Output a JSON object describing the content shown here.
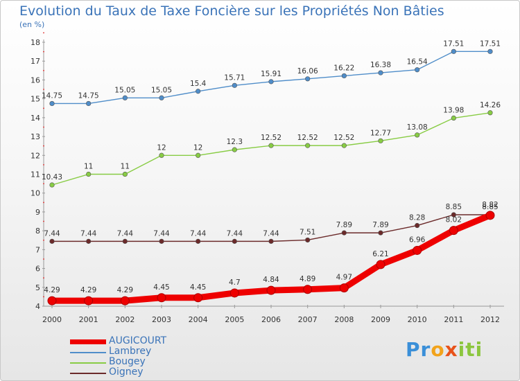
{
  "chart_data": {
    "type": "line",
    "title": "Evolution du Taux de Taxe Foncière sur les Propriétés Non Bâties",
    "subtitle": "(en %)",
    "categories": [
      "2000",
      "2001",
      "2002",
      "2003",
      "2004",
      "2005",
      "2006",
      "2007",
      "2008",
      "2009",
      "2010",
      "2011",
      "2012"
    ],
    "ylim": [
      4,
      18
    ],
    "yticks": [
      4,
      5,
      6,
      7,
      8,
      9,
      10,
      11,
      12,
      13,
      14,
      15,
      16,
      17,
      18
    ],
    "grid": false,
    "legend_position": "bottom-left",
    "series": [
      {
        "name": "AUGICOURT",
        "color": "#ee0000",
        "emphasis": true,
        "values": [
          4.29,
          4.29,
          4.29,
          4.45,
          4.45,
          4.7,
          4.84,
          4.89,
          4.97,
          6.21,
          6.96,
          8.02,
          8.82
        ],
        "labels": [
          "4.29",
          "4.29",
          "4.29",
          "4.45",
          "4.45",
          "4.7",
          "4.84",
          "4.89",
          "4.97",
          "6.21",
          "6.96",
          "8.02",
          "8.82"
        ]
      },
      {
        "name": "Lambrey",
        "color": "#4f8dc9",
        "values": [
          14.75,
          14.75,
          15.05,
          15.05,
          15.4,
          15.71,
          15.91,
          16.06,
          16.22,
          16.38,
          16.54,
          17.51,
          17.51
        ],
        "labels": [
          "14.75",
          "14.75",
          "15.05",
          "15.05",
          "15.4",
          "15.71",
          "15.91",
          "16.06",
          "16.22",
          "16.38",
          "16.54",
          "17.51",
          "17.51"
        ]
      },
      {
        "name": "Bougey",
        "color": "#88cc44",
        "values": [
          10.43,
          11,
          11,
          12,
          12,
          12.3,
          12.52,
          12.52,
          12.52,
          12.77,
          13.08,
          13.98,
          14.26
        ],
        "labels": [
          "10.43",
          "11",
          "11",
          "12",
          "12",
          "12.3",
          "12.52",
          "12.52",
          "12.52",
          "12.77",
          "13.08",
          "13.98",
          "14.26"
        ]
      },
      {
        "name": "Oigney",
        "color": "#6b2a2a",
        "values": [
          7.44,
          7.44,
          7.44,
          7.44,
          7.44,
          7.44,
          7.44,
          7.51,
          7.89,
          7.89,
          8.28,
          8.85,
          8.85
        ],
        "labels": [
          "7.44",
          "7.44",
          "7.44",
          "7.44",
          "7.44",
          "7.44",
          "7.44",
          "7.51",
          "7.89",
          "7.89",
          "8.28",
          "8.85",
          "8.85"
        ]
      }
    ]
  },
  "brand": {
    "letters": [
      "P",
      "r",
      "o",
      "x",
      "i",
      "t",
      "i"
    ],
    "colors": [
      "#3a8fd8",
      "#3a8fd8",
      "#f2a31b",
      "#e8521a",
      "#8cc63f",
      "#8cc63f",
      "#8cc63f"
    ]
  }
}
